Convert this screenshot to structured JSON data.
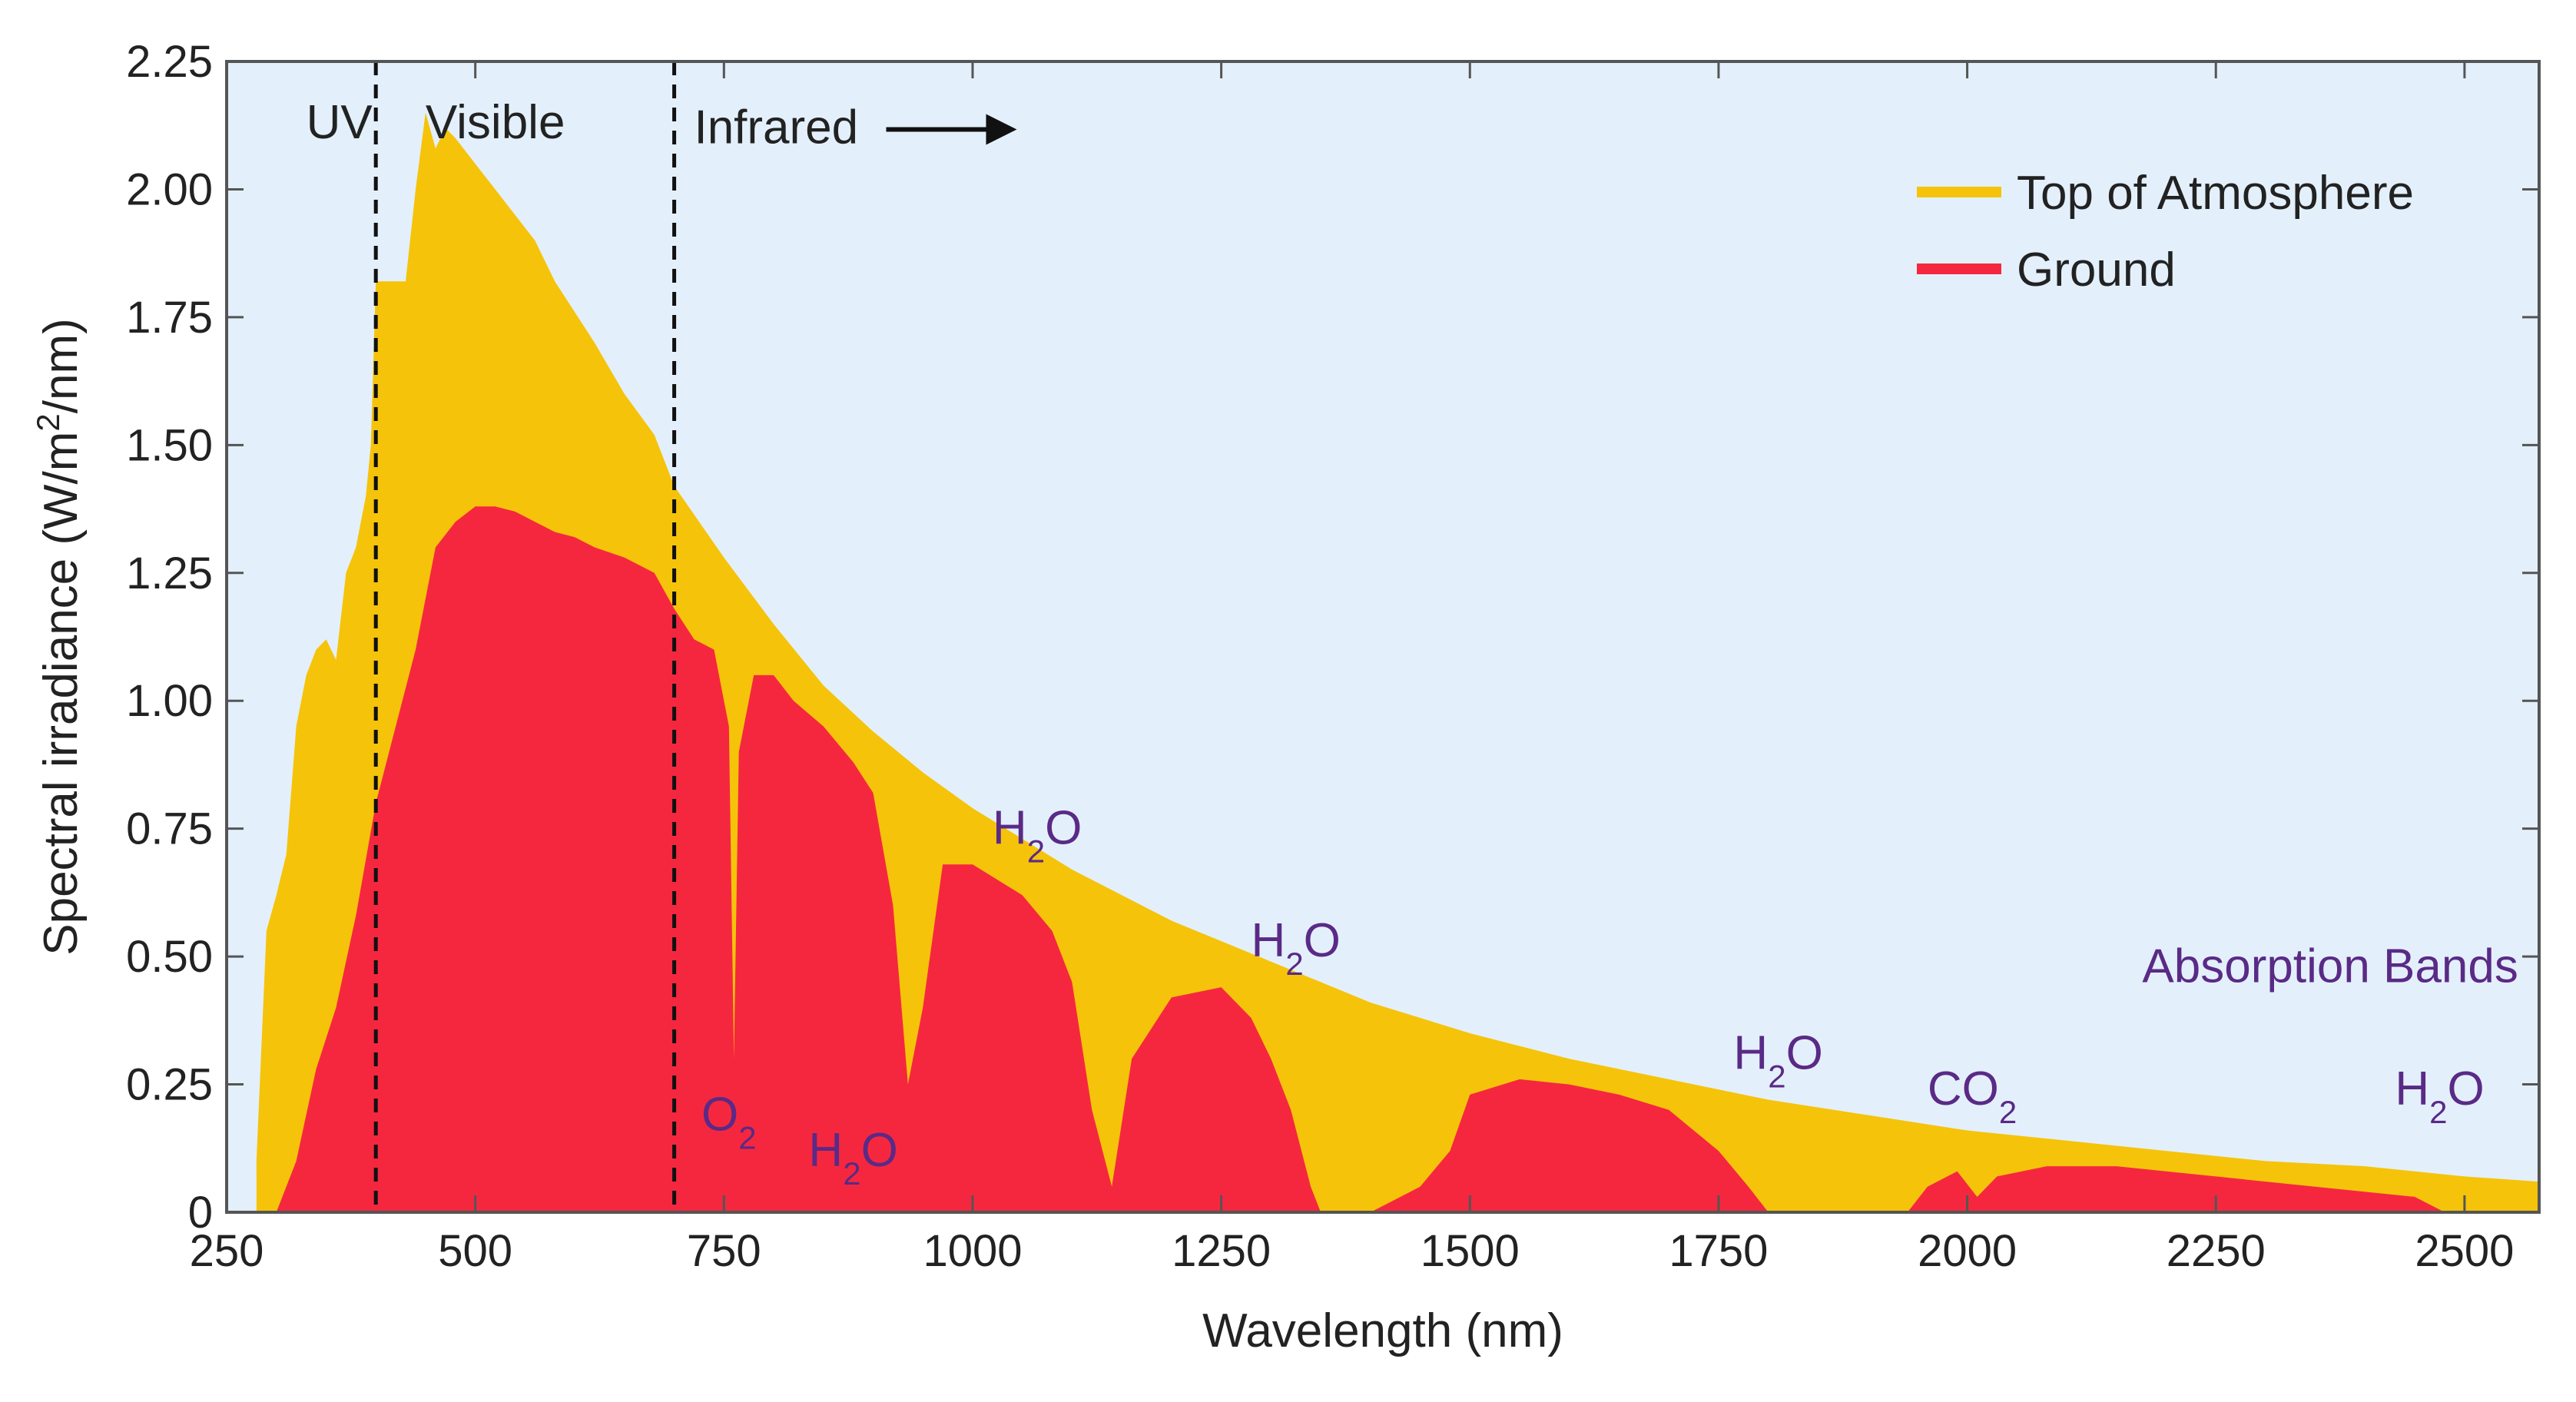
{
  "chart_data": {
    "type": "area",
    "title": "",
    "xlabel": "Wavelength (nm)",
    "ylabel_parts": {
      "main": "Spectral irradiance (W/m",
      "sup": "2",
      "end": "/nm)"
    },
    "xlim": [
      250,
      2575
    ],
    "ylim": [
      0,
      2.25
    ],
    "x_ticks": [
      250,
      500,
      750,
      1000,
      1250,
      1500,
      1750,
      2000,
      2250,
      2500
    ],
    "y_ticks": [
      0,
      0.25,
      0.5,
      0.75,
      1.0,
      1.25,
      1.5,
      1.75,
      2.0,
      2.25
    ],
    "y_tick_labels": [
      "0",
      "0.25",
      "0.50",
      "0.75",
      "1.00",
      "1.25",
      "1.50",
      "1.75",
      "2.00",
      "2.25"
    ],
    "plot_background": "#e3f0fb",
    "legend_position": "top-right",
    "series": [
      {
        "name": "Top of Atmosphere",
        "color": "#f5c30a",
        "points": [
          [
            280,
            0.1
          ],
          [
            290,
            0.55
          ],
          [
            300,
            0.62
          ],
          [
            310,
            0.7
          ],
          [
            320,
            0.95
          ],
          [
            330,
            1.05
          ],
          [
            340,
            1.1
          ],
          [
            350,
            1.12
          ],
          [
            360,
            1.08
          ],
          [
            370,
            1.25
          ],
          [
            380,
            1.3
          ],
          [
            390,
            1.4
          ],
          [
            395,
            1.5
          ],
          [
            400,
            1.82
          ],
          [
            430,
            1.82
          ],
          [
            440,
            2.0
          ],
          [
            450,
            2.15
          ],
          [
            460,
            2.08
          ],
          [
            470,
            2.12
          ],
          [
            480,
            2.1
          ],
          [
            500,
            2.05
          ],
          [
            520,
            2.0
          ],
          [
            540,
            1.95
          ],
          [
            560,
            1.9
          ],
          [
            580,
            1.82
          ],
          [
            600,
            1.76
          ],
          [
            620,
            1.7
          ],
          [
            650,
            1.6
          ],
          [
            680,
            1.52
          ],
          [
            700,
            1.42
          ],
          [
            750,
            1.28
          ],
          [
            800,
            1.15
          ],
          [
            850,
            1.03
          ],
          [
            900,
            0.94
          ],
          [
            950,
            0.86
          ],
          [
            1000,
            0.79
          ],
          [
            1100,
            0.67
          ],
          [
            1200,
            0.57
          ],
          [
            1300,
            0.49
          ],
          [
            1400,
            0.41
          ],
          [
            1500,
            0.35
          ],
          [
            1600,
            0.3
          ],
          [
            1700,
            0.26
          ],
          [
            1800,
            0.22
          ],
          [
            1900,
            0.19
          ],
          [
            2000,
            0.16
          ],
          [
            2100,
            0.14
          ],
          [
            2200,
            0.12
          ],
          [
            2300,
            0.1
          ],
          [
            2400,
            0.09
          ],
          [
            2500,
            0.07
          ],
          [
            2575,
            0.06
          ]
        ]
      },
      {
        "name": "Ground",
        "color": "#f5273f",
        "points": [
          [
            290,
            0.0
          ],
          [
            300,
            0.0
          ],
          [
            320,
            0.1
          ],
          [
            340,
            0.28
          ],
          [
            360,
            0.4
          ],
          [
            380,
            0.58
          ],
          [
            400,
            0.8
          ],
          [
            420,
            0.95
          ],
          [
            440,
            1.1
          ],
          [
            460,
            1.3
          ],
          [
            480,
            1.35
          ],
          [
            500,
            1.38
          ],
          [
            520,
            1.38
          ],
          [
            540,
            1.37
          ],
          [
            560,
            1.35
          ],
          [
            580,
            1.33
          ],
          [
            600,
            1.32
          ],
          [
            620,
            1.3
          ],
          [
            650,
            1.28
          ],
          [
            680,
            1.25
          ],
          [
            700,
            1.18
          ],
          [
            720,
            1.12
          ],
          [
            740,
            1.1
          ],
          [
            755,
            0.95
          ],
          [
            760,
            0.3
          ],
          [
            765,
            0.9
          ],
          [
            780,
            1.05
          ],
          [
            800,
            1.05
          ],
          [
            820,
            1.0
          ],
          [
            850,
            0.95
          ],
          [
            880,
            0.88
          ],
          [
            900,
            0.82
          ],
          [
            920,
            0.6
          ],
          [
            935,
            0.25
          ],
          [
            950,
            0.4
          ],
          [
            970,
            0.68
          ],
          [
            1000,
            0.68
          ],
          [
            1050,
            0.62
          ],
          [
            1080,
            0.55
          ],
          [
            1100,
            0.45
          ],
          [
            1120,
            0.2
          ],
          [
            1140,
            0.05
          ],
          [
            1160,
            0.3
          ],
          [
            1200,
            0.42
          ],
          [
            1250,
            0.44
          ],
          [
            1280,
            0.38
          ],
          [
            1300,
            0.3
          ],
          [
            1320,
            0.2
          ],
          [
            1340,
            0.05
          ],
          [
            1350,
            0.0
          ],
          [
            1400,
            0.0
          ],
          [
            1420,
            0.02
          ],
          [
            1450,
            0.05
          ],
          [
            1480,
            0.12
          ],
          [
            1500,
            0.23
          ],
          [
            1550,
            0.26
          ],
          [
            1600,
            0.25
          ],
          [
            1650,
            0.23
          ],
          [
            1700,
            0.2
          ],
          [
            1750,
            0.12
          ],
          [
            1780,
            0.05
          ],
          [
            1800,
            0.0
          ],
          [
            1940,
            0.0
          ],
          [
            1960,
            0.05
          ],
          [
            1990,
            0.08
          ],
          [
            2010,
            0.03
          ],
          [
            2030,
            0.07
          ],
          [
            2080,
            0.09
          ],
          [
            2150,
            0.09
          ],
          [
            2200,
            0.08
          ],
          [
            2300,
            0.06
          ],
          [
            2400,
            0.04
          ],
          [
            2450,
            0.03
          ],
          [
            2480,
            0.0
          ],
          [
            2575,
            0.0
          ]
        ]
      }
    ],
    "region_dividers_nm": [
      400,
      700
    ],
    "regions": [
      {
        "label": "UV",
        "x": 330,
        "y": 2.1
      },
      {
        "label": "Visible",
        "x": 450,
        "y": 2.1
      },
      {
        "label": "Infrared",
        "x": 720,
        "y": 2.09
      }
    ],
    "absorption_bands": [
      {
        "main": "O",
        "sub": "2",
        "end": "",
        "x": 755,
        "y": 0.16
      },
      {
        "main": "H",
        "sub": "2",
        "end": "O",
        "x": 880,
        "y": 0.09
      },
      {
        "main": "H",
        "sub": "2",
        "end": "O",
        "x": 1065,
        "y": 0.72
      },
      {
        "main": "H",
        "sub": "2",
        "end": "O",
        "x": 1325,
        "y": 0.5
      },
      {
        "main": "H",
        "sub": "2",
        "end": "O",
        "x": 1810,
        "y": 0.28
      },
      {
        "main": "C",
        "sub": "2",
        "end": "O",
        "x": 2005,
        "y": 0.21,
        "display": "CO2"
      },
      {
        "main": "H",
        "sub": "2",
        "end": "O",
        "x": 2475,
        "y": 0.21
      }
    ],
    "absorption_title": "Absorption Bands",
    "absorption_title_position": {
      "x": 2365,
      "y": 0.45
    }
  }
}
